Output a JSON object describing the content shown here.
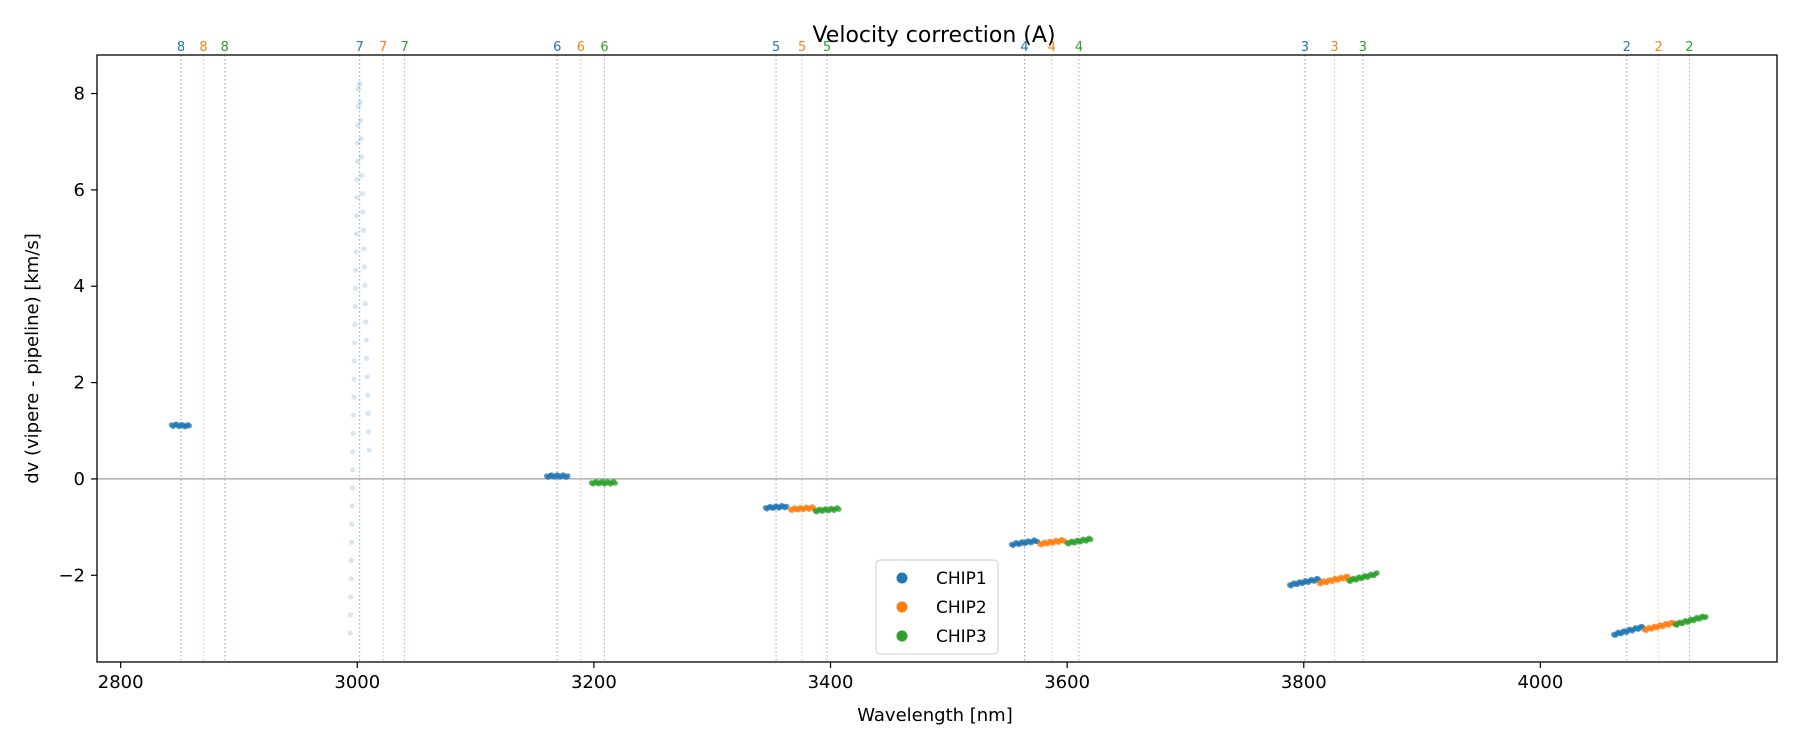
{
  "chart_data": {
    "type": "scatter",
    "title": "Velocity correction (A)",
    "xlabel": "Wavelength [nm]",
    "ylabel": "dv (vipere - pipeline) [km/s]",
    "xlim": [
      2780,
      4200
    ],
    "ylim": [
      -3.8,
      8.8
    ],
    "xticks": [
      2800,
      3000,
      3200,
      3400,
      3600,
      3800,
      4000
    ],
    "yticks": [
      -2,
      0,
      2,
      4,
      6,
      8
    ],
    "xticklabels": [
      "2800",
      "3000",
      "3200",
      "3400",
      "3600",
      "3800",
      "4000"
    ],
    "yticklabels": [
      "−2",
      "0",
      "2",
      "4",
      "6",
      "8"
    ],
    "zero_line": 0,
    "colors": {
      "CHIP1": "#1f77b4",
      "CHIP2": "#ff7f0e",
      "CHIP3": "#2ca02c",
      "axis": "#000000",
      "zero_line": "#888888"
    },
    "legend": {
      "placement": "lower-center",
      "entries": [
        {
          "label": "CHIP1",
          "color": "#1f77b4"
        },
        {
          "label": "CHIP2",
          "color": "#ff7f0e"
        },
        {
          "label": "CHIP3",
          "color": "#2ca02c"
        }
      ]
    },
    "order_lines": [
      {
        "order": "8",
        "chip": "CHIP1",
        "x": 2851
      },
      {
        "order": "8",
        "chip": "CHIP2",
        "x": 2870
      },
      {
        "order": "8",
        "chip": "CHIP3",
        "x": 2888
      },
      {
        "order": "7",
        "chip": "CHIP1",
        "x": 3002
      },
      {
        "order": "7",
        "chip": "CHIP2",
        "x": 3022
      },
      {
        "order": "7",
        "chip": "CHIP3",
        "x": 3040
      },
      {
        "order": "6",
        "chip": "CHIP1",
        "x": 3169
      },
      {
        "order": "6",
        "chip": "CHIP2",
        "x": 3189
      },
      {
        "order": "6",
        "chip": "CHIP3",
        "x": 3209
      },
      {
        "order": "5",
        "chip": "CHIP1",
        "x": 3354
      },
      {
        "order": "5",
        "chip": "CHIP2",
        "x": 3376
      },
      {
        "order": "5",
        "chip": "CHIP3",
        "x": 3397
      },
      {
        "order": "4",
        "chip": "CHIP1",
        "x": 3564
      },
      {
        "order": "4",
        "chip": "CHIP2",
        "x": 3587
      },
      {
        "order": "4",
        "chip": "CHIP3",
        "x": 3610
      },
      {
        "order": "3",
        "chip": "CHIP1",
        "x": 3801
      },
      {
        "order": "3",
        "chip": "CHIP2",
        "x": 3826
      },
      {
        "order": "3",
        "chip": "CHIP3",
        "x": 3850
      },
      {
        "order": "2",
        "chip": "CHIP1",
        "x": 4073
      },
      {
        "order": "2",
        "chip": "CHIP2",
        "x": 4100
      },
      {
        "order": "2",
        "chip": "CHIP3",
        "x": 4126
      }
    ],
    "segments": [
      {
        "chip": "CHIP1",
        "order": "8",
        "x": [
          2843,
          2858
        ],
        "y": [
          1.12,
          1.1
        ],
        "opacity": 0.75
      },
      {
        "chip": "CHIP1",
        "order": "6",
        "x": [
          3160,
          3178
        ],
        "y": [
          0.06,
          0.06
        ],
        "opacity": 0.75
      },
      {
        "chip": "CHIP3",
        "order": "6",
        "x": [
          3198,
          3218
        ],
        "y": [
          -0.08,
          -0.08
        ],
        "opacity": 0.75
      },
      {
        "chip": "CHIP1",
        "order": "5",
        "x": [
          3345,
          3363
        ],
        "y": [
          -0.6,
          -0.57
        ],
        "opacity": 0.75
      },
      {
        "chip": "CHIP2",
        "order": "5",
        "x": [
          3366,
          3386
        ],
        "y": [
          -0.63,
          -0.6
        ],
        "opacity": 0.75
      },
      {
        "chip": "CHIP3",
        "order": "5",
        "x": [
          3387,
          3407
        ],
        "y": [
          -0.66,
          -0.62
        ],
        "opacity": 0.75
      },
      {
        "chip": "CHIP1",
        "order": "4",
        "x": [
          3553,
          3575
        ],
        "y": [
          -1.36,
          -1.28
        ],
        "opacity": 0.75
      },
      {
        "chip": "CHIP2",
        "order": "4",
        "x": [
          3577,
          3598
        ],
        "y": [
          -1.35,
          -1.27
        ],
        "opacity": 0.75
      },
      {
        "chip": "CHIP3",
        "order": "4",
        "x": [
          3600,
          3620
        ],
        "y": [
          -1.33,
          -1.25
        ],
        "opacity": 0.75
      },
      {
        "chip": "CHIP1",
        "order": "3",
        "x": [
          3788,
          3813
        ],
        "y": [
          -2.2,
          -2.08
        ],
        "opacity": 0.75
      },
      {
        "chip": "CHIP2",
        "order": "3",
        "x": [
          3813,
          3838
        ],
        "y": [
          -2.16,
          -2.03
        ],
        "opacity": 0.75
      },
      {
        "chip": "CHIP3",
        "order": "3",
        "x": [
          3838,
          3862
        ],
        "y": [
          -2.11,
          -1.97
        ],
        "opacity": 0.75
      },
      {
        "chip": "CHIP1",
        "order": "2",
        "x": [
          4062,
          4087
        ],
        "y": [
          -3.23,
          -3.07
        ],
        "opacity": 0.75
      },
      {
        "chip": "CHIP2",
        "order": "2",
        "x": [
          4088,
          4114
        ],
        "y": [
          -3.13,
          -2.98
        ],
        "opacity": 0.75
      },
      {
        "chip": "CHIP3",
        "order": "2",
        "x": [
          4114,
          4140
        ],
        "y": [
          -3.02,
          -2.85
        ],
        "opacity": 0.75
      },
      {
        "chip": "CHIP1",
        "order": "7",
        "x": [
          2994,
          3001
        ],
        "y": [
          -3.2,
          8.1
        ],
        "opacity": 0.18
      },
      {
        "chip": "CHIP1",
        "order": "7",
        "x": [
          3002,
          3010
        ],
        "y": [
          8.2,
          0.6
        ],
        "opacity": 0.18
      }
    ]
  }
}
